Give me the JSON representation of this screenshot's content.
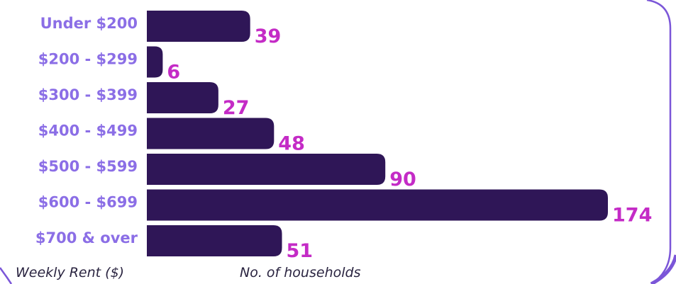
{
  "colors": {
    "bar": "#2f1657",
    "category_label": "#8b6ee6",
    "value_label": "#c42bc6",
    "panel_border": "#7b56d8"
  },
  "chart_data": {
    "type": "bar",
    "orientation": "horizontal",
    "categories": [
      "Under $200",
      "$200 - $299",
      "$300 - $399",
      "$400 - $499",
      "$500 - $599",
      "$600 - $699",
      "$700 & over"
    ],
    "values": [
      39,
      6,
      27,
      48,
      90,
      174,
      51
    ],
    "title": "",
    "xlabel": "No. of households",
    "ylabel": "Weekly Rent ($)",
    "xlim": [
      0,
      174
    ],
    "grid": false,
    "legend": "none"
  }
}
